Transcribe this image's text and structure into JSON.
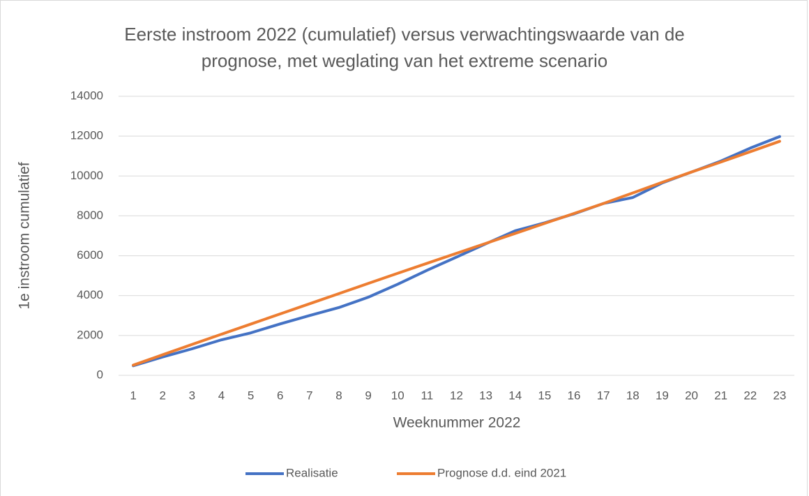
{
  "chart_data": {
    "type": "line",
    "title": "Eerste instroom 2022 (cumulatief) versus verwachtingswaarde van de prognose, met weglating van het extreme scenario",
    "x_label": "Weeknummer 2022",
    "y_label": "1e instroom cumulatief",
    "categories": [
      "1",
      "2",
      "3",
      "4",
      "5",
      "6",
      "7",
      "8",
      "9",
      "10",
      "11",
      "12",
      "13",
      "14",
      "15",
      "16",
      "17",
      "18",
      "19",
      "20",
      "21",
      "22",
      "23"
    ],
    "series": [
      {
        "name": "Realisatie",
        "color": "#4472c4",
        "values": [
          480,
          920,
          1330,
          1780,
          2130,
          2580,
          3000,
          3400,
          3920,
          4570,
          5270,
          5930,
          6600,
          7250,
          7650,
          8100,
          8620,
          8920,
          9650,
          10200,
          10750,
          11400,
          11980
        ]
      },
      {
        "name": "Prognose d.d. eind 2021",
        "color": "#ed7d31",
        "values": [
          510,
          1030,
          1550,
          2060,
          2570,
          3080,
          3590,
          4100,
          4610,
          5120,
          5620,
          6120,
          6620,
          7120,
          7620,
          8120,
          8620,
          9150,
          9680,
          10200,
          10700,
          11220,
          11740
        ]
      }
    ],
    "ylim": [
      0,
      14000
    ],
    "yticks": [
      0,
      2000,
      4000,
      6000,
      8000,
      10000,
      12000,
      14000
    ],
    "grid": true,
    "legend": "bottom"
  }
}
